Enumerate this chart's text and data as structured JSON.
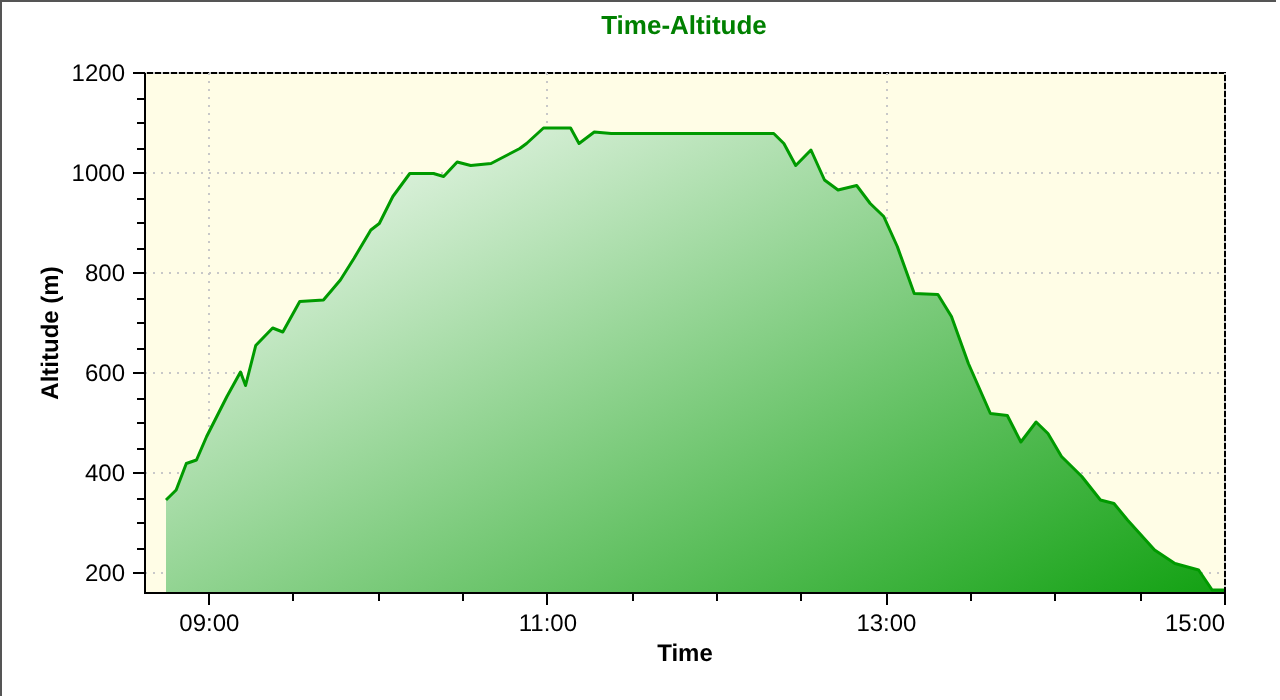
{
  "chart_data": {
    "type": "area",
    "title": "Time-Altitude",
    "xlabel": "Time",
    "ylabel": "Altitude (m)",
    "x": [
      8.75,
      8.81,
      8.87,
      8.93,
      8.99,
      9.11,
      9.19,
      9.22,
      9.28,
      9.38,
      9.44,
      9.54,
      9.68,
      9.78,
      9.86,
      9.96,
      10.01,
      10.09,
      10.19,
      10.33,
      10.39,
      10.47,
      10.55,
      10.67,
      10.84,
      10.88,
      10.98,
      11.14,
      11.19,
      11.28,
      11.38,
      12.34,
      12.4,
      12.47,
      12.56,
      12.64,
      12.72,
      12.83,
      12.91,
      12.99,
      13.07,
      13.17,
      13.31,
      13.39,
      13.49,
      13.62,
      13.72,
      13.8,
      13.89,
      13.96,
      14.04,
      14.16,
      14.27,
      14.35,
      14.43,
      14.59,
      14.71,
      14.85,
      14.93,
      15.0
    ],
    "series": [
      {
        "color": "#009a00",
        "values": [
          344,
          364,
          417,
          424,
          471,
          551,
          600,
          573,
          653,
          688,
          680,
          741,
          744,
          784,
          827,
          884,
          897,
          951,
          997,
          997,
          991,
          1020,
          1013,
          1017,
          1047,
          1057,
          1088,
          1088,
          1057,
          1080,
          1077,
          1077,
          1057,
          1013,
          1044,
          984,
          964,
          973,
          937,
          911,
          851,
          757,
          755,
          711,
          617,
          517,
          513,
          460,
          500,
          477,
          431,
          391,
          344,
          337,
          304,
          244,
          217,
          204,
          164,
          164
        ]
      }
    ],
    "xlim": [
      8.62,
      15.0
    ],
    "xticks": [
      {
        "value": 9,
        "label": "09:00"
      },
      {
        "value": 9.5,
        "label": null
      },
      {
        "value": 10,
        "label": null
      },
      {
        "value": 10.5,
        "label": null
      },
      {
        "value": 11,
        "label": "11:00"
      },
      {
        "value": 11.5,
        "label": null
      },
      {
        "value": 12,
        "label": null
      },
      {
        "value": 12.5,
        "label": null
      },
      {
        "value": 13,
        "label": "13:00"
      },
      {
        "value": 13.5,
        "label": null
      },
      {
        "value": 14,
        "label": null
      },
      {
        "value": 14.5,
        "label": null
      },
      {
        "value": 15,
        "label": "15:00"
      }
    ],
    "ylim": [
      160,
      1200
    ],
    "yticks": [
      {
        "value": 200,
        "label": "200"
      },
      {
        "value": 250,
        "label": null
      },
      {
        "value": 300,
        "label": null
      },
      {
        "value": 350,
        "label": null
      },
      {
        "value": 400,
        "label": "400"
      },
      {
        "value": 450,
        "label": null
      },
      {
        "value": 500,
        "label": null
      },
      {
        "value": 550,
        "label": null
      },
      {
        "value": 600,
        "label": "600"
      },
      {
        "value": 650,
        "label": null
      },
      {
        "value": 700,
        "label": null
      },
      {
        "value": 750,
        "label": null
      },
      {
        "value": 800,
        "label": "800"
      },
      {
        "value": 850,
        "label": null
      },
      {
        "value": 900,
        "label": null
      },
      {
        "value": 950,
        "label": null
      },
      {
        "value": 1000,
        "label": "1000"
      },
      {
        "value": 1050,
        "label": null
      },
      {
        "value": 1100,
        "label": null
      },
      {
        "value": 1150,
        "label": null
      },
      {
        "value": 1200,
        "label": "1200"
      }
    ],
    "grid": true
  }
}
